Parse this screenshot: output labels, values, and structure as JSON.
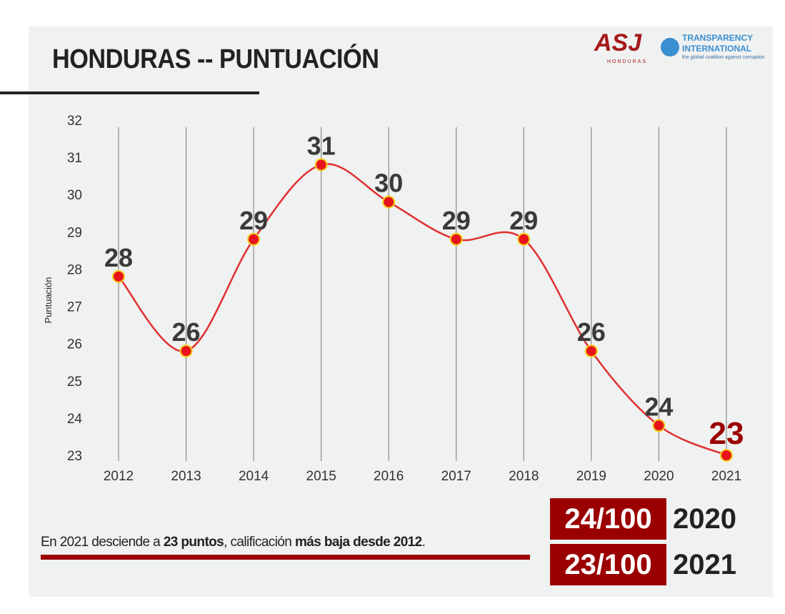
{
  "header": {
    "title": "HONDURAS -- PUNTUACIÓN",
    "logo_asj": "ASJ",
    "logo_asj_sub": "HONDURAS",
    "logo_ti_line1": "TRANSPARENCY",
    "logo_ti_line2": "INTERNATIONAL",
    "logo_ti_tagline": "the global coalition against corruption"
  },
  "colors": {
    "line": "#e03030",
    "marker": "#e8141c",
    "marker_edge": "#f2d21b",
    "accent": "#9b0000",
    "label": "#3a3a3a"
  },
  "chart_data": {
    "type": "line",
    "title": "",
    "xlabel": "",
    "ylabel": "Puntuación",
    "ylim": [
      23,
      32
    ],
    "yticks": [
      "23",
      "24",
      "25",
      "26",
      "27",
      "28",
      "29",
      "30",
      "31",
      "32"
    ],
    "categories": [
      "2012",
      "2013",
      "2014",
      "2015",
      "2016",
      "2017",
      "2018",
      "2019",
      "2020",
      "2021"
    ],
    "series": [
      {
        "name": "Puntuación",
        "values": [
          27.8,
          25.8,
          28.8,
          30.8,
          29.8,
          28.8,
          28.8,
          25.8,
          23.8,
          23.0
        ]
      }
    ],
    "data_labels": [
      "28",
      "26",
      "29",
      "31",
      "30",
      "29",
      "29",
      "26",
      "24",
      "23"
    ],
    "grid": "vertical"
  },
  "footnote": {
    "p1": "En 2021 desciende a ",
    "b1": "23 puntos",
    "p2": ", calificación ",
    "b2": "más baja desde 2012",
    "p3": "."
  },
  "scores": [
    {
      "score": "24/100",
      "year": "2020"
    },
    {
      "score": "23/100",
      "year": "2021"
    }
  ]
}
